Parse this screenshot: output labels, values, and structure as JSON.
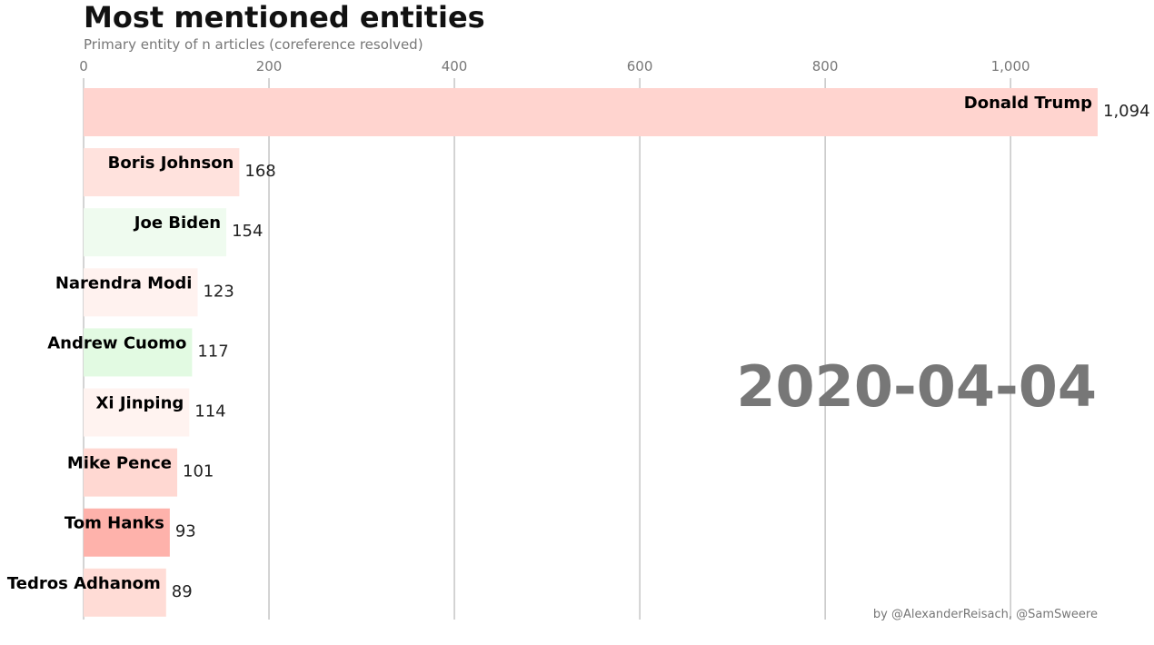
{
  "chart_data": {
    "type": "bar",
    "orientation": "horizontal",
    "title": "Most mentioned entities",
    "subtitle": "Primary entity of n articles (coreference resolved)",
    "date": "2020-04-04",
    "credit": "by @AlexanderReisach, @SamSweere",
    "xlim": [
      0,
      1094
    ],
    "xticks": [
      0,
      200,
      400,
      600,
      800,
      1000
    ],
    "xtick_labels": [
      "0",
      "200",
      "400",
      "600",
      "800",
      "1,000"
    ],
    "grid": "vertical",
    "categories": [
      "Donald Trump",
      "Boris Johnson",
      "Joe Biden",
      "Narendra Modi",
      "Andrew Cuomo",
      "Xi Jinping",
      "Mike Pence",
      "Tom Hanks",
      "Tedros Adhanom"
    ],
    "values": [
      1094,
      168,
      154,
      123,
      117,
      114,
      101,
      93,
      89
    ],
    "value_labels": [
      "1,094",
      "168",
      "154",
      "123",
      "117",
      "114",
      "101",
      "93",
      "89"
    ],
    "colors": [
      "#ffd4cf",
      "#ffe2dd",
      "#effbef",
      "#fff2ef",
      "#e2fae2",
      "#fff3f0",
      "#ffd8d2",
      "#feb2ab",
      "#ffdcd6"
    ]
  }
}
